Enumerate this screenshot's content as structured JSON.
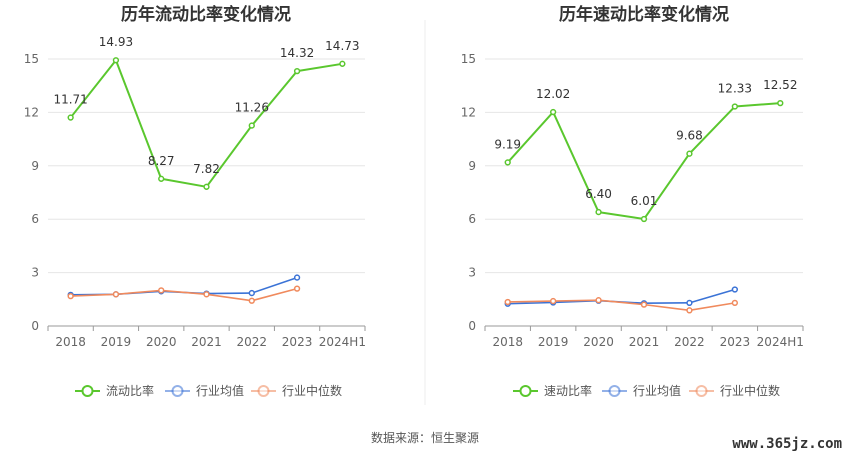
{
  "charts": [
    {
      "chart_data": {
        "type": "line",
        "title": "历年流动比率变化情况",
        "categories": [
          "2018",
          "2019",
          "2020",
          "2021",
          "2022",
          "2023",
          "2024H1"
        ],
        "ylim": [
          0,
          15
        ],
        "yticks": [
          "0",
          "3",
          "6",
          "9",
          "12",
          "15"
        ],
        "grid": true,
        "legend_position": "bottom",
        "series": [
          {
            "name": "流动比率",
            "color": "#5ac72e",
            "values": [
              11.71,
              14.93,
              8.27,
              7.82,
              11.26,
              14.32,
              14.73
            ],
            "labels": [
              "11.71",
              "14.93",
              "8.27",
              "7.82",
              "11.26",
              "14.32",
              "14.73"
            ]
          },
          {
            "name": "行业均值",
            "color": "#3b73d6",
            "values": [
              1.75,
              1.78,
              1.95,
              1.82,
              1.85,
              2.72,
              null
            ]
          },
          {
            "name": "行业中位数",
            "color": "#f08a5d",
            "values": [
              1.68,
              1.78,
              2.0,
              1.78,
              1.42,
              2.1,
              null
            ]
          }
        ]
      }
    },
    {
      "chart_data": {
        "type": "line",
        "title": "历年速动比率变化情况",
        "categories": [
          "2018",
          "2019",
          "2020",
          "2021",
          "2022",
          "2023",
          "2024H1"
        ],
        "ylim": [
          0,
          15
        ],
        "yticks": [
          "0",
          "3",
          "6",
          "9",
          "12",
          "15"
        ],
        "grid": true,
        "legend_position": "bottom",
        "series": [
          {
            "name": "速动比率",
            "color": "#5ac72e",
            "values": [
              9.19,
              12.02,
              6.4,
              6.01,
              9.68,
              12.33,
              12.52
            ],
            "labels": [
              "9.19",
              "12.02",
              "6.40",
              "6.01",
              "9.68",
              "12.33",
              "12.52"
            ]
          },
          {
            "name": "行业均值",
            "color": "#3b73d6",
            "values": [
              1.25,
              1.32,
              1.42,
              1.28,
              1.3,
              2.05,
              null
            ]
          },
          {
            "name": "行业中位数",
            "color": "#f08a5d",
            "values": [
              1.35,
              1.4,
              1.45,
              1.2,
              0.88,
              1.3,
              null
            ]
          }
        ]
      }
    }
  ],
  "footer": {
    "source": "数据来源：恒生聚源",
    "watermark": "www.365jz.com"
  }
}
